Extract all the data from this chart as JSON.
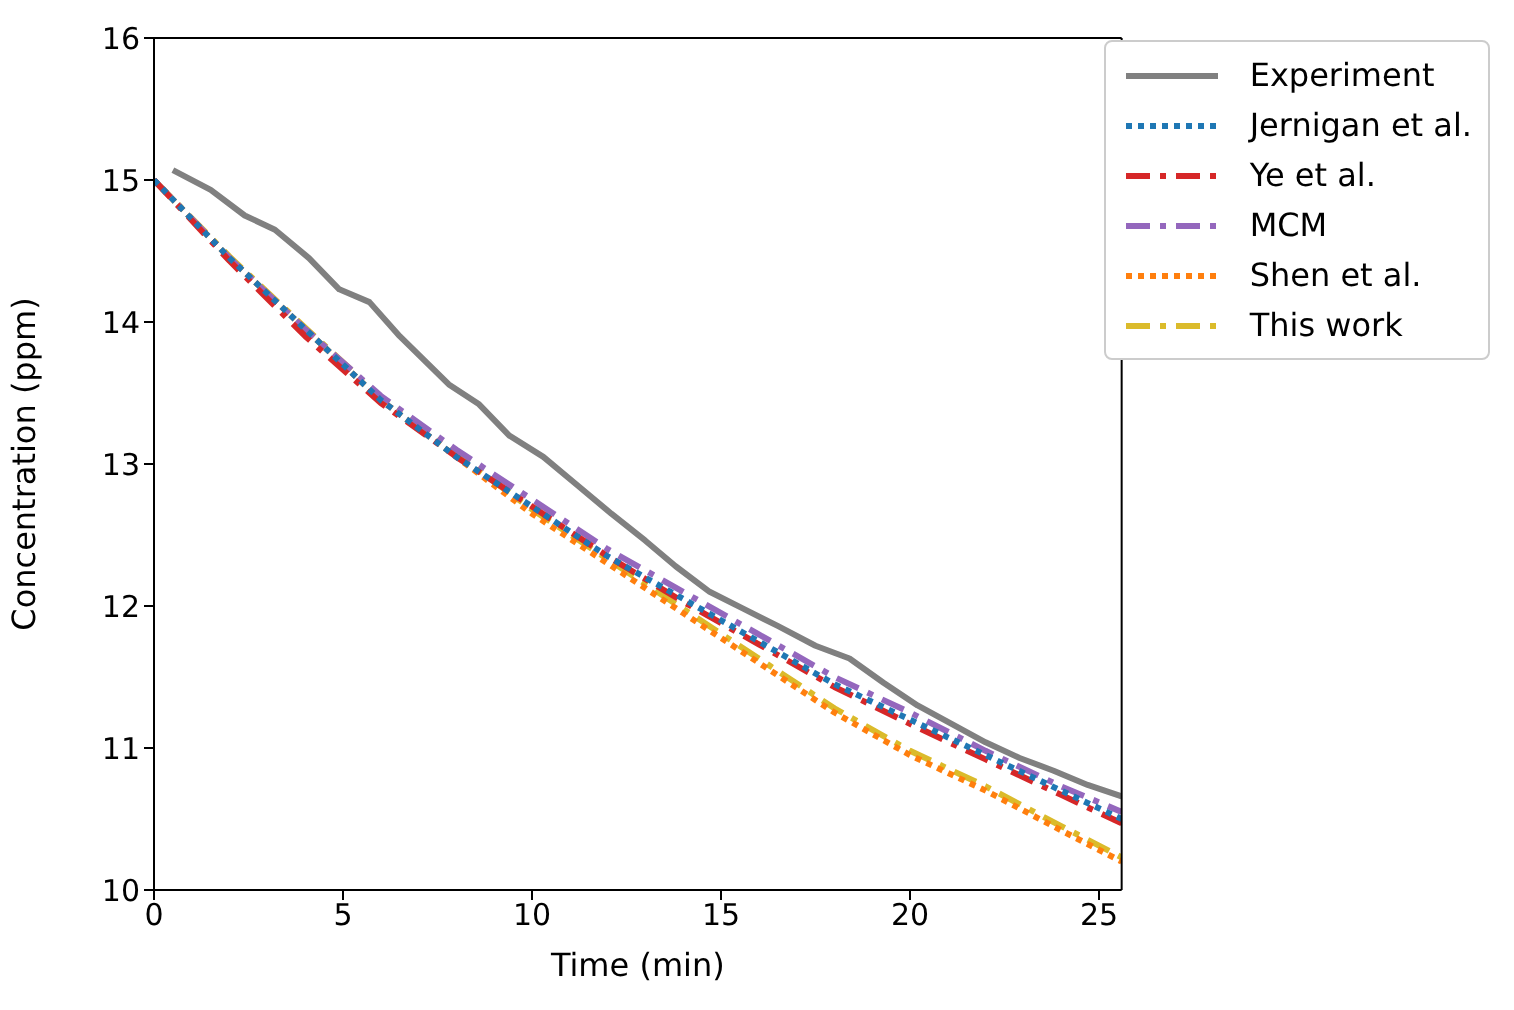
{
  "chart_data": {
    "type": "line",
    "xlabel": "Time (min)",
    "ylabel": "Concentration (ppm)",
    "xlim": [
      0,
      25.6
    ],
    "xticks": [
      0,
      5,
      10,
      15,
      20,
      25
    ],
    "ylim": [
      10,
      16
    ],
    "yticks": [
      10,
      11,
      12,
      13,
      14,
      15,
      16
    ],
    "legend": "top right",
    "marker": "none",
    "series": [
      {
        "name": "Experiment",
        "color": "#808080",
        "line_style": "solid",
        "x": [
          0.5,
          1.5,
          2.4,
          3.2,
          4.1,
          4.9,
          5.7,
          6.5,
          7.8,
          8.6,
          9.4,
          10.3,
          11.2,
          12.1,
          13,
          13.8,
          14.7,
          15.6,
          16.5,
          17.5,
          18.4,
          19.3,
          20.2,
          21.1,
          22,
          22.9,
          23.8,
          24.7,
          25.6
        ],
        "values": [
          15.07,
          14.93,
          14.75,
          14.65,
          14.45,
          14.23,
          14.14,
          13.9,
          13.56,
          13.42,
          13.2,
          13.05,
          12.85,
          12.65,
          12.46,
          12.28,
          12.1,
          11.98,
          11.86,
          11.72,
          11.63,
          11.46,
          11.3,
          11.17,
          11.04,
          10.93,
          10.84,
          10.74,
          10.66
        ]
      },
      {
        "name": "Jernigan et al.",
        "color": "#1f77b4",
        "line_style": "dotted",
        "x": [
          0,
          2,
          4,
          6,
          8,
          10,
          12,
          14,
          16,
          18,
          20,
          22,
          24,
          25.6
        ],
        "values": [
          15,
          14.45,
          13.95,
          13.45,
          13.05,
          12.7,
          12.35,
          12.05,
          11.75,
          11.45,
          11.2,
          10.95,
          10.7,
          10.5
        ]
      },
      {
        "name": "Ye et al.",
        "color": "#d62728",
        "line_style": "dashed",
        "x": [
          0,
          2,
          4,
          6,
          8,
          10,
          12,
          14,
          16,
          18,
          20,
          22,
          24,
          25.6
        ],
        "values": [
          15,
          14.43,
          13.9,
          13.43,
          13.05,
          12.7,
          12.35,
          12.03,
          11.73,
          11.43,
          11.17,
          10.92,
          10.67,
          10.47
        ]
      },
      {
        "name": "MCM",
        "color": "#9467bd",
        "line_style": "dashed",
        "x": [
          0,
          2,
          4,
          6,
          8,
          10,
          12,
          14,
          16,
          18,
          20,
          22,
          24,
          25.6
        ],
        "values": [
          15,
          14.45,
          13.95,
          13.48,
          13.1,
          12.75,
          12.4,
          12.1,
          11.8,
          11.5,
          11.25,
          10.98,
          10.73,
          10.55
        ]
      },
      {
        "name": "Shen et al.",
        "color": "#ff7f0e",
        "line_style": "dotted",
        "x": [
          0,
          2,
          4,
          6,
          8,
          10,
          12,
          14,
          16,
          18,
          20,
          22,
          24,
          25.6
        ],
        "values": [
          15,
          14.45,
          13.95,
          13.45,
          13.05,
          12.65,
          12.3,
          11.95,
          11.6,
          11.25,
          10.95,
          10.7,
          10.42,
          10.2
        ]
      },
      {
        "name": "This work",
        "color": "#dbbb2b",
        "line_style": "dashed",
        "x": [
          0,
          2,
          4,
          6,
          8,
          10,
          12,
          14,
          16,
          18,
          20,
          22,
          24,
          25.6
        ],
        "values": [
          15,
          14.46,
          13.96,
          13.47,
          13.07,
          12.68,
          12.33,
          11.98,
          11.63,
          11.28,
          10.98,
          10.73,
          10.45,
          10.23
        ]
      }
    ]
  }
}
